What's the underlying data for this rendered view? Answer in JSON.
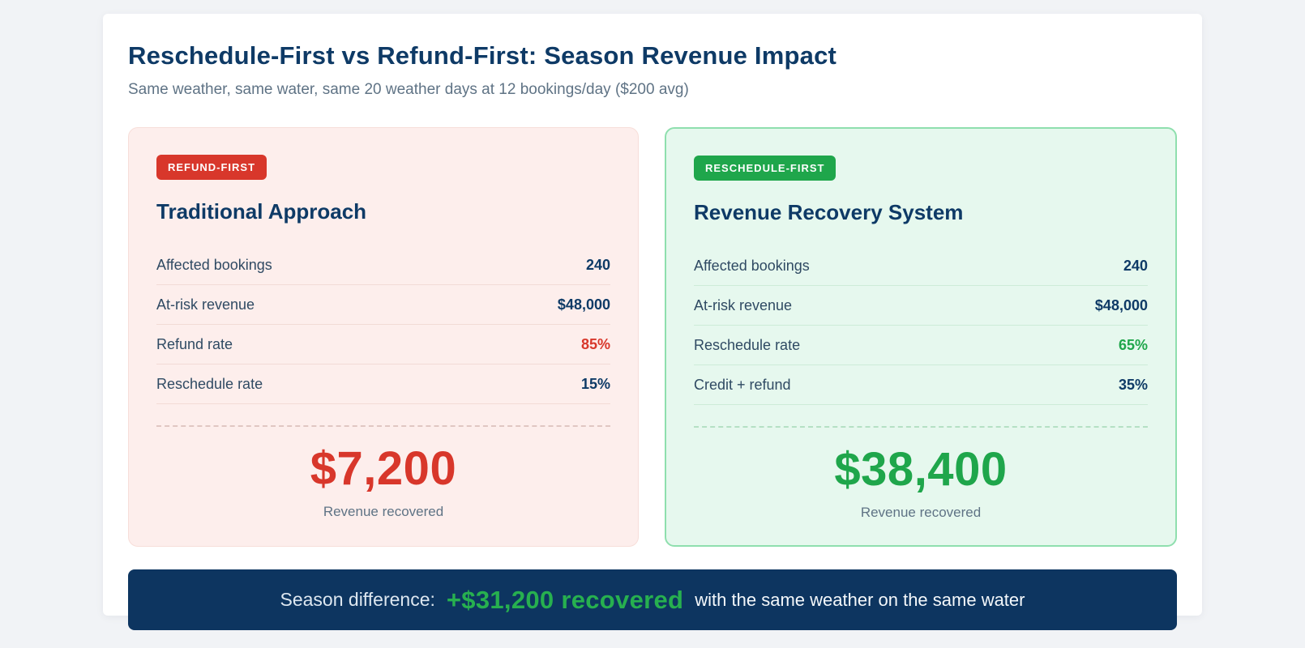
{
  "page": {
    "title": "Reschedule-First vs Refund-First: Season Revenue Impact",
    "subtitle": "Same weather, same water, same 20 weather days at 12 bookings/day ($200 avg)"
  },
  "cards": {
    "refund_first": {
      "badge": "REFUND-FIRST",
      "title": "Traditional Approach",
      "rows": [
        {
          "label": "Affected bookings",
          "value": "240"
        },
        {
          "label": "At-risk revenue",
          "value": "$48,000"
        },
        {
          "label": "Refund rate",
          "value": "85%"
        },
        {
          "label": "Reschedule rate",
          "value": "15%"
        }
      ],
      "total_value": "$7,200",
      "total_label": "Revenue recovered",
      "accent_color": "#d8372b",
      "background_color": "#fdeeec"
    },
    "reschedule_first": {
      "badge": "RESCHEDULE-FIRST",
      "title": "Revenue Recovery System",
      "rows": [
        {
          "label": "Affected bookings",
          "value": "240"
        },
        {
          "label": "At-risk revenue",
          "value": "$48,000"
        },
        {
          "label": "Reschedule rate",
          "value": "65%"
        },
        {
          "label": "Credit + refund",
          "value": "35%"
        }
      ],
      "total_value": "$38,400",
      "total_label": "Revenue recovered",
      "accent_color": "#1fa64b",
      "background_color": "#e6f8ee",
      "border_color": "#8fdfae"
    }
  },
  "banner": {
    "label": "Season difference:",
    "highlight": "+$31,200 recovered",
    "suffix": "with the same weather on the same water",
    "background_color": "#0d3560",
    "highlight_color": "#27b04f"
  },
  "colors": {
    "heading": "#0e3a66",
    "subtitle": "#5f7385",
    "page_background": "#f1f3f6",
    "panel_background": "#ffffff"
  }
}
